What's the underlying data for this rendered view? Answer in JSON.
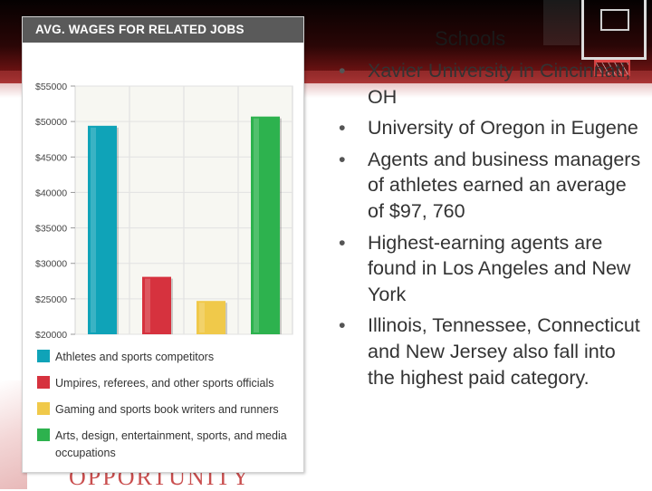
{
  "slide": {
    "title_fragment": "Schools",
    "bullets": [
      "Xavier University in Cincinnati, OH",
      "University of Oregon in Eugene",
      "Agents and business managers of athletes earned an average of $97, 760",
      "Highest-earning agents  are found in Los Angeles and New York",
      "Illinois, Tennessee, Connecticut and New Jersey also fall into the highest  paid category."
    ],
    "watermark": "OPPORTUNITY"
  },
  "chart_data": {
    "type": "bar",
    "title": "AVG. WAGES FOR RELATED JOBS",
    "ylim": [
      20000,
      55000
    ],
    "yticks": [
      55000,
      50000,
      45000,
      40000,
      35000,
      30000,
      25000,
      20000
    ],
    "ytick_labels": [
      "$55000",
      "$50000",
      "$45000",
      "$40000",
      "$35000",
      "$30000",
      "$25000",
      "$20000"
    ],
    "grid": true,
    "legend_position": "bottom",
    "series": [
      {
        "name": "Athletes and sports competitors",
        "value": 49400,
        "color": "#0fa3b8"
      },
      {
        "name": "Umpires, referees, and other sports officials",
        "value": 28100,
        "color": "#d6323e"
      },
      {
        "name": "Gaming and sports book writers and runners",
        "value": 24700,
        "color": "#f0c94a"
      },
      {
        "name": "Arts, design, entertainment, sports, and media occupations",
        "value": 50700,
        "color": "#2db24e"
      }
    ]
  }
}
